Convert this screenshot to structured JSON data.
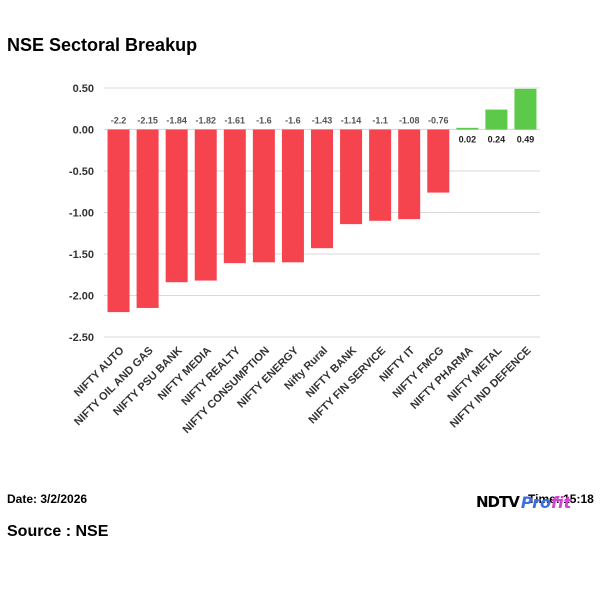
{
  "header": {
    "title": "NSE Sectoral Breakup"
  },
  "footer": {
    "date": "Date: 3/2/2026",
    "time": "Time: 15:18",
    "source": "Source : NSE",
    "brand_ndtv": "NDTV",
    "brand_profit_1": "Pro",
    "brand_profit_2": "fit"
  },
  "colors": {
    "negative": "#f5444d",
    "positive": "#5cc94a",
    "grid": "#d9d9d9"
  },
  "chart_data": {
    "type": "bar",
    "title": "NSE Sectoral Breakup",
    "categories": [
      "NIFTY AUTO",
      "NIFTY OIL AND GAS",
      "NIFTY PSU BANK",
      "NIFTY MEDIA",
      "NIFTY REALTY",
      "NIFTY CONSUMPTION",
      "NIFTY ENERGY",
      "Nifty Rural",
      "NIFTY BANK",
      "NIFTY FIN SERVICE",
      "NIFTY IT",
      "NIFTY FMCG",
      "NIFTY PHARMA",
      "NIFTY METAL",
      "NIFTY IND DEFENCE"
    ],
    "values": [
      -2.2,
      -2.15,
      -1.84,
      -1.82,
      -1.61,
      -1.6,
      -1.6,
      -1.43,
      -1.14,
      -1.1,
      -1.08,
      -0.76,
      0.02,
      0.24,
      0.49
    ],
    "data_labels": [
      "-2.2",
      "-2.15",
      "-1.84",
      "-1.82",
      "-1.61",
      "-1.6",
      "-1.6",
      "-1.43",
      "-1.14",
      "-1.1",
      "-1.08",
      "-0.76",
      "0.02",
      "0.24",
      "0.49"
    ],
    "yticks": [
      "0.50",
      "0.00",
      "-0.50",
      "-1.00",
      "-1.50",
      "-2.00",
      "-2.50"
    ],
    "ylim": [
      -2.5,
      0.5
    ],
    "grid": true,
    "legend": "none"
  }
}
